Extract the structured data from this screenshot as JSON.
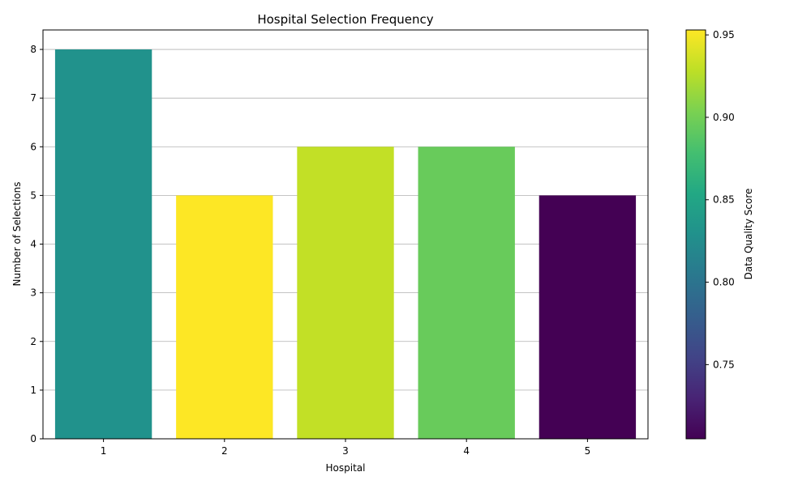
{
  "chart_data": {
    "type": "bar",
    "title": "Hospital Selection Frequency",
    "xlabel": "Hospital",
    "ylabel": "Number of Selections",
    "categories": [
      "1",
      "2",
      "3",
      "4",
      "5"
    ],
    "values": [
      8,
      5,
      6,
      6,
      5
    ],
    "color_scores": [
      0.83,
      0.953,
      0.93,
      0.895,
      0.705
    ],
    "ylim": [
      0,
      8.4
    ],
    "yticks": [
      "0",
      "1",
      "2",
      "3",
      "4",
      "5",
      "6",
      "7",
      "8"
    ],
    "grid": "horizontal",
    "colorbar": {
      "label": "Data Quality Score",
      "colormap": "viridis",
      "range": [
        0.705,
        0.953
      ],
      "ticks": [
        "0.75",
        "0.80",
        "0.85",
        "0.90",
        "0.95"
      ]
    }
  }
}
